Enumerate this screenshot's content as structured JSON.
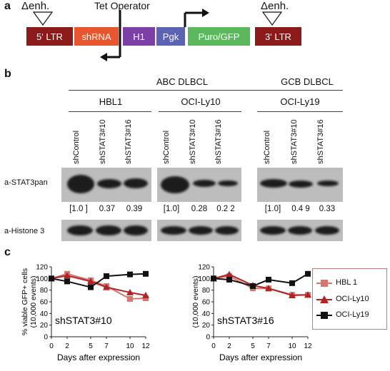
{
  "panel_a": {
    "letter": "a",
    "tet_operator_label": "Tet Operator",
    "enhancer_label": "Δenh.",
    "segments": [
      {
        "label": "5' LTR",
        "color": "#8b1a1a"
      },
      {
        "label": "shRNA",
        "color": "#e8562f"
      },
      {
        "label": "H1",
        "color": "#7b3fa6"
      },
      {
        "label": "Pgk",
        "color": "#5d63b3"
      },
      {
        "label": "Puro/GFP",
        "color": "#5cb85c"
      },
      {
        "label": "3' LTR",
        "color": "#8b1a1a"
      }
    ]
  },
  "panel_b": {
    "letter": "b",
    "group_labels": {
      "abc": "ABC DLBCL",
      "gcb": "GCB DLBCL"
    },
    "cell_lines": [
      {
        "name": "HBL1",
        "lanes": [
          "shControl",
          "shSTAT3#10",
          "shSTAT3#16"
        ],
        "quant": [
          "[1.0 ]",
          "0.37",
          "0.39"
        ]
      },
      {
        "name": "OCI-Ly10",
        "lanes": [
          "shControl",
          "shSTAT3#10",
          "shSTAT3#16"
        ],
        "quant": [
          "[1.0]",
          "0.28",
          "0.2 2"
        ]
      },
      {
        "name": "OCI-Ly19",
        "lanes": [
          "shControl",
          "shSTAT3#10",
          "shSTAT3#16"
        ],
        "quant": [
          "[1.0]",
          "0.4 9",
          "0.33"
        ]
      }
    ],
    "row_labels": {
      "stat3": "a-STAT3pan",
      "histone": "a-Histone 3"
    }
  },
  "panel_c": {
    "letter": "c",
    "legend": [
      {
        "name": "HBL 1",
        "color": "#d9756f",
        "marker": "square"
      },
      {
        "name": "OCI-Ly10",
        "color": "#b22222",
        "marker": "triangle"
      },
      {
        "name": "OCI-Ly19",
        "color": "#111111",
        "marker": "square"
      }
    ]
  },
  "chart_data": [
    {
      "type": "line",
      "title": "shSTAT3#10",
      "xlabel": "Days after expression",
      "ylabel": "% viable GFP+ cells (10,000 events)",
      "ylim": [
        0,
        120
      ],
      "x": [
        0,
        2,
        5,
        7,
        10,
        12
      ],
      "yticks": [
        0,
        20,
        40,
        60,
        80,
        100,
        120
      ],
      "series": [
        {
          "name": "HBL 1",
          "values": [
            100,
            108,
            97,
            87,
            65,
            66
          ]
        },
        {
          "name": "OCI-Ly10",
          "values": [
            100,
            105,
            95,
            85,
            76,
            71
          ]
        },
        {
          "name": "OCI-Ly19",
          "values": [
            100,
            95,
            85,
            104,
            107,
            108
          ]
        }
      ]
    },
    {
      "type": "line",
      "title": "shSTAT3#16",
      "xlabel": "Days after expression",
      "ylabel": "% viable GFP+ cells (10,000 events)",
      "ylim": [
        0,
        120
      ],
      "x": [
        0,
        2,
        5,
        7,
        10,
        12
      ],
      "yticks": [
        0,
        20,
        40,
        60,
        80,
        100,
        120
      ],
      "series": [
        {
          "name": "HBL 1",
          "values": [
            100,
            104,
            83,
            83,
            72,
            72
          ]
        },
        {
          "name": "OCI-Ly10",
          "values": [
            100,
            107,
            88,
            83,
            71,
            72
          ]
        },
        {
          "name": "OCI-Ly19",
          "values": [
            100,
            98,
            87,
            98,
            92,
            108
          ]
        }
      ]
    }
  ]
}
